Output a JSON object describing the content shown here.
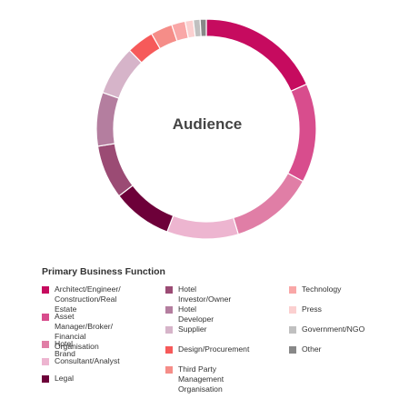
{
  "chart_data": {
    "type": "pie",
    "variant": "donut",
    "center_label": "Audience",
    "legend_title": "Primary Business Function",
    "legend_placement": "bottom",
    "slices": [
      {
        "label": "Architect/Engineer/\nConstruction/Real Estate",
        "value": 18.3,
        "color": "#c60b5f"
      },
      {
        "label": "Asset Manager/Broker/\nFinancial Organisation",
        "value": 14.6,
        "color": "#d84d8d"
      },
      {
        "label": "Hotel Brand",
        "value": 12.4,
        "color": "#e07ea6"
      },
      {
        "label": "Consultant/Analyst",
        "value": 10.5,
        "color": "#edb5d0"
      },
      {
        "label": "Legal",
        "value": 8.8,
        "color": "#6d0039"
      },
      {
        "label": "Hotel Investor/Owner",
        "value": 7.9,
        "color": "#9b4b74"
      },
      {
        "label": "Hotel Developer",
        "value": 7.9,
        "color": "#b47e9f"
      },
      {
        "label": "Supplier",
        "value": 7.3,
        "color": "#d6b4c9"
      },
      {
        "label": "Design/Procurement",
        "value": 4.0,
        "color": "#f65a5a"
      },
      {
        "label": "Third Party Management\nOrganisation",
        "value": 3.2,
        "color": "#f58d88"
      },
      {
        "label": "Technology",
        "value": 2.0,
        "color": "#f9a7a7"
      },
      {
        "label": "Press",
        "value": 1.2,
        "color": "#fbd0d0"
      },
      {
        "label": "Government/NGO",
        "value": 1.0,
        "color": "#c0c0c0"
      },
      {
        "label": "Other",
        "value": 0.9,
        "color": "#888888"
      }
    ]
  }
}
